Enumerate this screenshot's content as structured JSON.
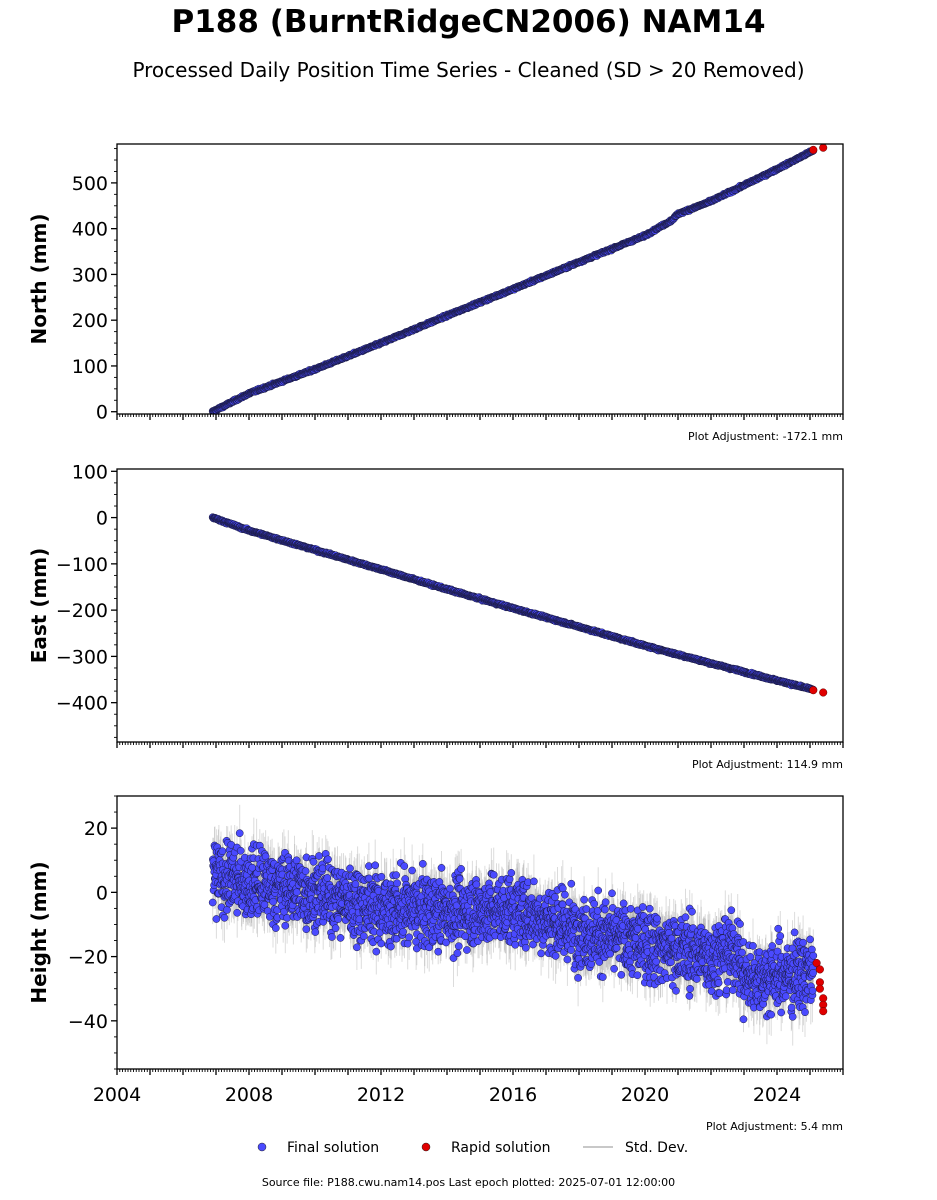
{
  "title": "P188 (BurntRidgeCN2006) NAM14",
  "subtitle": "Processed Daily Position Time Series - Cleaned (SD > 20 Removed)",
  "footer": "Source file: P188.cwu.nam14.pos  Last epoch plotted: 2025-07-01 12:00:00",
  "legend": {
    "items": [
      {
        "label": "Final solution",
        "marker": "dot",
        "color": "#4a4aff"
      },
      {
        "label": "Rapid solution",
        "marker": "dot",
        "color": "#e00000"
      },
      {
        "label": "Std. Dev.",
        "marker": "line",
        "color": "#c8c8c8"
      }
    ]
  },
  "colors": {
    "final": "#4a4aff",
    "rapid": "#e00000",
    "stddev": "#9a9a9a",
    "edge": "#1a1a40"
  },
  "chart_data": [
    {
      "type": "scatter",
      "ylabel": "North (mm)",
      "adjustment_label": "Plot Adjustment: -172.1 mm",
      "xlim": [
        2004,
        2026
      ],
      "ylim": [
        -5,
        585
      ],
      "yticks": [
        0,
        100,
        200,
        300,
        400,
        500
      ],
      "ytick_labels": [
        "0",
        "100",
        "200",
        "300",
        "400",
        "500"
      ],
      "show_xtick_labels": false,
      "series": [
        {
          "name": "Final solution",
          "x": [
            2006.9,
            2008,
            2010,
            2012,
            2014,
            2016,
            2018,
            2020,
            2020.8,
            2021,
            2022,
            2024,
            2025.1
          ],
          "values": [
            0,
            40,
            93,
            150,
            210,
            268,
            327,
            385,
            418,
            432,
            460,
            530,
            571
          ]
        },
        {
          "name": "Rapid solution",
          "x": [
            2025.1,
            2025.4
          ],
          "values": [
            572,
            577
          ]
        }
      ],
      "scatter": 4
    },
    {
      "type": "scatter",
      "ylabel": "East (mm)",
      "adjustment_label": "Plot Adjustment: 114.9 mm",
      "xlim": [
        2004,
        2026
      ],
      "ylim": [
        -485,
        105
      ],
      "yticks": [
        100,
        0,
        -100,
        -200,
        -300,
        -400
      ],
      "ytick_labels": [
        "100",
        "0",
        "−100",
        "−200",
        "−300",
        "−400"
      ],
      "show_xtick_labels": false,
      "series": [
        {
          "name": "Final solution",
          "x": [
            2006.9,
            2008,
            2010,
            2012,
            2014,
            2016,
            2018,
            2020,
            2022,
            2024,
            2025.1
          ],
          "values": [
            0,
            -28,
            -70,
            -112,
            -155,
            -196,
            -236,
            -277,
            -315,
            -352,
            -372
          ]
        },
        {
          "name": "Rapid solution",
          "x": [
            2025.1,
            2025.4
          ],
          "values": [
            -373,
            -378
          ]
        }
      ],
      "scatter": 4
    },
    {
      "type": "scatter",
      "ylabel": "Height (mm)",
      "adjustment_label": "Plot Adjustment: 5.4 mm",
      "xlim": [
        2004,
        2026
      ],
      "ylim": [
        -55,
        30
      ],
      "yticks": [
        20,
        0,
        -20,
        -40
      ],
      "ytick_labels": [
        "20",
        "0",
        "−20",
        "−40"
      ],
      "show_xtick_labels": true,
      "xticks": [
        2004,
        2008,
        2012,
        2016,
        2020,
        2024
      ],
      "xtick_labels": [
        "2004",
        "2008",
        "2012",
        "2016",
        "2020",
        "2024"
      ],
      "series": [
        {
          "name": "Final solution",
          "x": [
            2006.9,
            2008,
            2010,
            2012,
            2014,
            2016,
            2018,
            2020,
            2021,
            2022,
            2022.8,
            2023,
            2024,
            2025.1
          ],
          "values": [
            5,
            3,
            0,
            -5,
            -6,
            -5,
            -12,
            -16,
            -18,
            -20,
            -18,
            -27,
            -26,
            -25
          ]
        },
        {
          "name": "Rapid solution",
          "x": [
            2025.2,
            2025.3,
            2025.3,
            2025.3,
            2025.4,
            2025.4,
            2025.4
          ],
          "values": [
            -22,
            -24,
            -28,
            -30,
            -33,
            -35,
            -37
          ]
        }
      ],
      "scatter": 9,
      "stddev": 6
    }
  ]
}
